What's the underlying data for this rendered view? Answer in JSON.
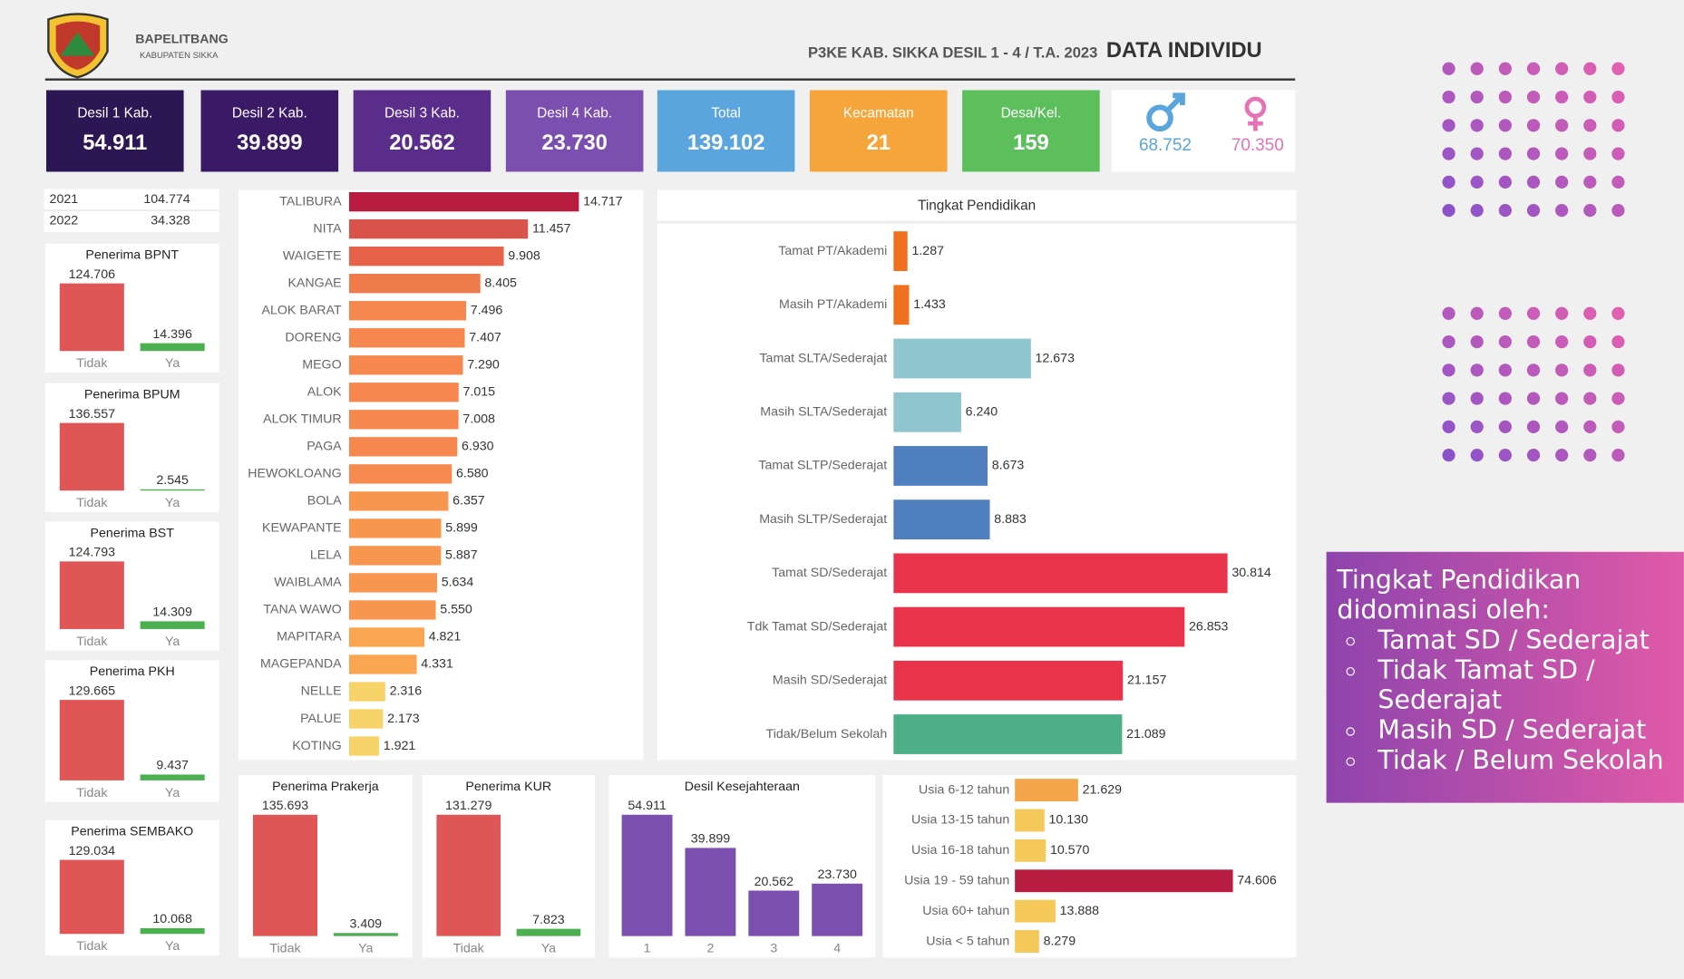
{
  "header": {
    "org": "BAPELITBANG",
    "sub": "KABUPATEN SIKKA",
    "title": "P3KE KAB. SIKKA DESIL 1 - 4 / T.A. 2023",
    "title_main": "DATA INDIVIDU"
  },
  "kpis": [
    {
      "label": "Desil 1 Kab.",
      "value": "54.911",
      "color": "#2d1654"
    },
    {
      "label": "Desil 2 Kab.",
      "value": "39.899",
      "color": "#3a1a66"
    },
    {
      "label": "Desil 3 Kab.",
      "value": "20.562",
      "color": "#5a2d8a"
    },
    {
      "label": "Desil 4 Kab.",
      "value": "23.730",
      "color": "#7b4fb0"
    },
    {
      "label": "Total",
      "value": "139.102",
      "color": "#5aa5de"
    },
    {
      "label": "Kecamatan",
      "value": "21",
      "color": "#f5a53a"
    },
    {
      "label": "Desa/Kel.",
      "value": "159",
      "color": "#5cbf5c"
    }
  ],
  "gender": {
    "male": "68.752",
    "female": "70.350",
    "male_color": "#5aa5de",
    "female_color": "#e573b5"
  },
  "year_table": {
    "rows": [
      [
        "2021",
        "104.774"
      ],
      [
        "2022",
        "34.328"
      ]
    ]
  },
  "chart_data": [
    {
      "type": "bar",
      "title": "Penerima BPNT",
      "categories": [
        "Tidak",
        "Ya"
      ],
      "values": [
        124706,
        14396
      ],
      "value_labels": [
        "124.706",
        "14.396"
      ],
      "colors": [
        "#e05555",
        "#4caf50"
      ]
    },
    {
      "type": "bar",
      "title": "Penerima BPUM",
      "categories": [
        "Tidak",
        "Ya"
      ],
      "values": [
        136557,
        2545
      ],
      "value_labels": [
        "136.557",
        "2.545"
      ],
      "colors": [
        "#e05555",
        "#4caf50"
      ]
    },
    {
      "type": "bar",
      "title": "Penerima BST",
      "categories": [
        "Tidak",
        "Ya"
      ],
      "values": [
        124793,
        14309
      ],
      "value_labels": [
        "124.793",
        "14.309"
      ],
      "colors": [
        "#e05555",
        "#4caf50"
      ]
    },
    {
      "type": "bar",
      "title": "Penerima PKH",
      "categories": [
        "Tidak",
        "Ya"
      ],
      "values": [
        129665,
        9437
      ],
      "value_labels": [
        "129.665",
        "9.437"
      ],
      "colors": [
        "#e05555",
        "#4caf50"
      ]
    },
    {
      "type": "bar",
      "title": "Penerima SEMBAKO",
      "categories": [
        "Tidak",
        "Ya"
      ],
      "values": [
        129034,
        10068
      ],
      "value_labels": [
        "129.034",
        "10.068"
      ],
      "colors": [
        "#e05555",
        "#4caf50"
      ]
    },
    {
      "type": "bar",
      "title": "Penerima Prakerja",
      "categories": [
        "Tidak",
        "Ya"
      ],
      "values": [
        135693,
        3409
      ],
      "value_labels": [
        "135.693",
        "3.409"
      ],
      "colors": [
        "#e05555",
        "#4caf50"
      ]
    },
    {
      "type": "bar",
      "title": "Penerima KUR",
      "categories": [
        "Tidak",
        "Ya"
      ],
      "values": [
        131279,
        7823
      ],
      "value_labels": [
        "131.279",
        "7.823"
      ],
      "colors": [
        "#e05555",
        "#4caf50"
      ]
    },
    {
      "type": "bar",
      "title": "Desil Kesejahteraan",
      "categories": [
        "1",
        "2",
        "3",
        "4"
      ],
      "values": [
        54911,
        39899,
        20562,
        23730
      ],
      "value_labels": [
        "54.911",
        "39.899",
        "20.562",
        "23.730"
      ],
      "colors": [
        "#7b4fb0",
        "#7b4fb0",
        "#7b4fb0",
        "#7b4fb0"
      ]
    },
    {
      "type": "hbar",
      "categories": [
        "TALIBURA",
        "NITA",
        "WAIGETE",
        "KANGAE",
        "ALOK BARAT",
        "DORENG",
        "MEGO",
        "ALOK",
        "ALOK TIMUR",
        "PAGA",
        "HEWOKLOANG",
        "BOLA",
        "KEWAPANTE",
        "LELA",
        "WAIBLAMA",
        "TANA WAWO",
        "MAPITARA",
        "MAGEPANDA",
        "NELLE",
        "PALUE",
        "KOTING"
      ],
      "values": [
        14717,
        11457,
        9908,
        8405,
        7496,
        7407,
        7290,
        7015,
        7008,
        6930,
        6580,
        6357,
        5899,
        5887,
        5634,
        5550,
        4821,
        4331,
        2316,
        2173,
        1921
      ],
      "value_labels": [
        "14.717",
        "11.457",
        "9.908",
        "8.405",
        "7.496",
        "7.407",
        "7.290",
        "7.015",
        "7.008",
        "6.930",
        "6.580",
        "6.357",
        "5.899",
        "5.887",
        "5.634",
        "5.550",
        "4.821",
        "4.331",
        "2.316",
        "2.173",
        "1.921"
      ],
      "colors": [
        "#b81c40",
        "#d9534a",
        "#e8624a",
        "#ef7a4c",
        "#f5874f",
        "#f5874f",
        "#f5874f",
        "#f5874f",
        "#f5874f",
        "#f5874f",
        "#f68a4f",
        "#f8954f",
        "#f8954f",
        "#f8954f",
        "#f8954f",
        "#f8954f",
        "#f9a551",
        "#f9a551",
        "#f7d36a",
        "#f7d36a",
        "#f7d36a"
      ]
    },
    {
      "type": "hbar",
      "title": "Tingkat Pendidikan",
      "categories": [
        "Tamat PT/Akademi",
        "Masih PT/Akademi",
        "Tamat SLTA/Sederajat",
        "Masih SLTA/Sederajat",
        "Tamat SLTP/Sederajat",
        "Masih SLTP/Sederajat",
        "Tamat SD/Sederajat",
        "Tdk Tamat SD/Sederajat",
        "Masih SD/Sederajat",
        "Tidak/Belum Sekolah"
      ],
      "values": [
        1287,
        1433,
        12673,
        6240,
        8673,
        8883,
        30814,
        26853,
        21157,
        21089
      ],
      "value_labels": [
        "1.287",
        "1.433",
        "12.673",
        "6.240",
        "8.673",
        "8.883",
        "30.814",
        "26.853",
        "21.157",
        "21.089"
      ],
      "colors": [
        "#f07020",
        "#f07020",
        "#8ec5cf",
        "#8ec5cf",
        "#4f7fbf",
        "#4f7fbf",
        "#e8334a",
        "#e8334a",
        "#e8334a",
        "#4caf85"
      ]
    },
    {
      "type": "hbar",
      "categories": [
        "Usia 6-12 tahun",
        "Usia 13-15 tahun",
        "Usia 16-18 tahun",
        "Usia 19 - 59 tahun",
        "Usia 60+ tahun",
        "Usia < 5 tahun"
      ],
      "values": [
        21629,
        10130,
        10570,
        74606,
        13888,
        8279
      ],
      "value_labels": [
        "21.629",
        "10.130",
        "10.570",
        "74.606",
        "13.888",
        "8.279"
      ],
      "colors": [
        "#f5a54a",
        "#f5c85a",
        "#f5c85a",
        "#b81c40",
        "#f5c85a",
        "#f5c85a"
      ]
    }
  ],
  "note": {
    "title": "Tingkat Pendidikan didominasi oleh:",
    "items": [
      "Tamat SD / Sederajat",
      "Tidak Tamat SD / Sederajat",
      "Masih SD / Sederajat",
      "Tidak / Belum Sekolah"
    ]
  }
}
